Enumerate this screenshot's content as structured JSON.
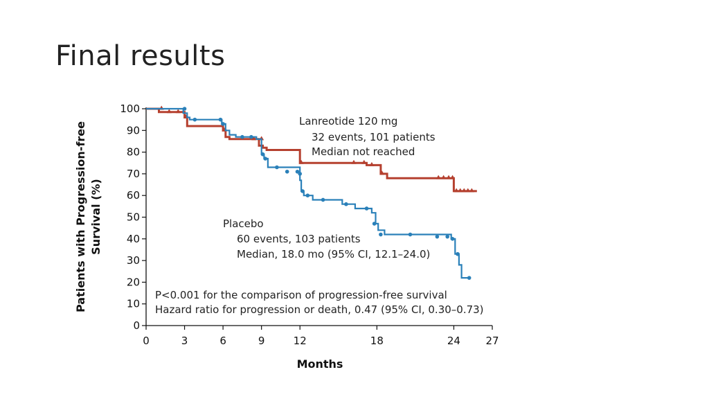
{
  "slide": {
    "title": "Final results"
  },
  "chart_data": {
    "type": "line",
    "xlabel": "Months",
    "ylabel_line1": "Patients with Progression-free",
    "ylabel_line2": "Survival (%)",
    "xlim": [
      0,
      27
    ],
    "ylim": [
      0,
      100
    ],
    "x_ticks": [
      0,
      3,
      6,
      9,
      12,
      18,
      24,
      27
    ],
    "y_ticks": [
      0,
      10,
      20,
      30,
      40,
      50,
      60,
      70,
      80,
      90,
      100
    ],
    "x_tick_labels": [
      "0",
      "3",
      "6",
      "9",
      "12",
      "18",
      "24",
      "27"
    ],
    "y_tick_labels": [
      "0",
      "10",
      "20",
      "30",
      "40",
      "50",
      "60",
      "70",
      "80",
      "90",
      "100"
    ],
    "series": [
      {
        "name": "Lanreotide 120 mg",
        "color": "#b5402f",
        "marker": "triangle",
        "x": [
          0,
          1,
          1,
          3,
          3,
          3.2,
          3.2,
          6,
          6,
          6.2,
          6.2,
          6.5,
          6.5,
          8.8,
          8.8,
          9.1,
          9.1,
          9.4,
          9.4,
          12,
          12,
          17.2,
          17.2,
          18.3,
          18.3,
          18.8,
          18.8,
          24,
          24,
          25.8
        ],
        "y": [
          100,
          100,
          98.5,
          98.5,
          96,
          96,
          92,
          92,
          90,
          90,
          87,
          87,
          86,
          86,
          83,
          83,
          82,
          82,
          81,
          81,
          75,
          75,
          74,
          74,
          70,
          70,
          68,
          68,
          62,
          62
        ],
        "censored_x": [
          1.2,
          1.8,
          2.5,
          3.1,
          6.1,
          8.4,
          9.0,
          12.1,
          16.2,
          17.0,
          17.6,
          18.4,
          22.8,
          23.2,
          23.6,
          23.9,
          24.2,
          24.5,
          24.8,
          25.1,
          25.4
        ],
        "censored_y": [
          100,
          98.5,
          98.5,
          96,
          90,
          86,
          86,
          75,
          75,
          75,
          74,
          70,
          68,
          68,
          68,
          68,
          62,
          62,
          62,
          62,
          62
        ]
      },
      {
        "name": "Placebo",
        "color": "#2a80b9",
        "marker": "circle",
        "x": [
          0,
          2.9,
          2.9,
          3.2,
          3.2,
          3.4,
          3.4,
          5.9,
          5.9,
          6.2,
          6.2,
          6.5,
          6.5,
          7,
          7,
          8.6,
          8.6,
          9,
          9,
          9.2,
          9.2,
          9.5,
          9.5,
          12,
          12,
          12.1,
          12.1,
          12.3,
          12.3,
          13,
          13,
          15.3,
          15.3,
          16.3,
          16.3,
          17.6,
          17.6,
          17.9,
          17.9,
          18.1,
          18.1,
          18.6,
          18.6,
          23.8,
          23.8,
          24.1,
          24.1,
          24.4,
          24.4,
          24.6,
          24.6,
          25.3
        ],
        "y": [
          100,
          100,
          98,
          98,
          96,
          96,
          95,
          95,
          93,
          93,
          90,
          90,
          88,
          88,
          87,
          87,
          86,
          86,
          79,
          79,
          77,
          77,
          73,
          73,
          67,
          67,
          62,
          62,
          60,
          60,
          58,
          58,
          56,
          56,
          54,
          54,
          52,
          52,
          47,
          47,
          44,
          44,
          42,
          42,
          40,
          40,
          33,
          33,
          28,
          28,
          22,
          22
        ],
        "censored_x": [
          3.0,
          3.8,
          5.8,
          6.0,
          7.5,
          8.2,
          9.1,
          9.3,
          10.2,
          11.0,
          11.8,
          12.0,
          12.2,
          12.6,
          13.8,
          15.6,
          17.2,
          17.8,
          18.3,
          20.6,
          22.7,
          23.5,
          23.9,
          24.3,
          25.2
        ],
        "censored_y": [
          100,
          95,
          95,
          93,
          87,
          87,
          79,
          77,
          73,
          71,
          71,
          70,
          62,
          60,
          58,
          56,
          54,
          47,
          42,
          42,
          41,
          41,
          40,
          33,
          22
        ]
      }
    ],
    "annotations": {
      "lanreotide": [
        "Lanreotide 120 mg",
        "32 events, 101 patients",
        "Median not reached"
      ],
      "placebo": [
        "Placebo",
        "60 events, 103 patients",
        "Median, 18.0 mo (95% CI, 12.1–24.0)"
      ],
      "stats": [
        "P<0.001 for the comparison of progression-free survival",
        "Hazard ratio for progression or death, 0.47 (95% CI, 0.30–0.73)"
      ]
    }
  }
}
